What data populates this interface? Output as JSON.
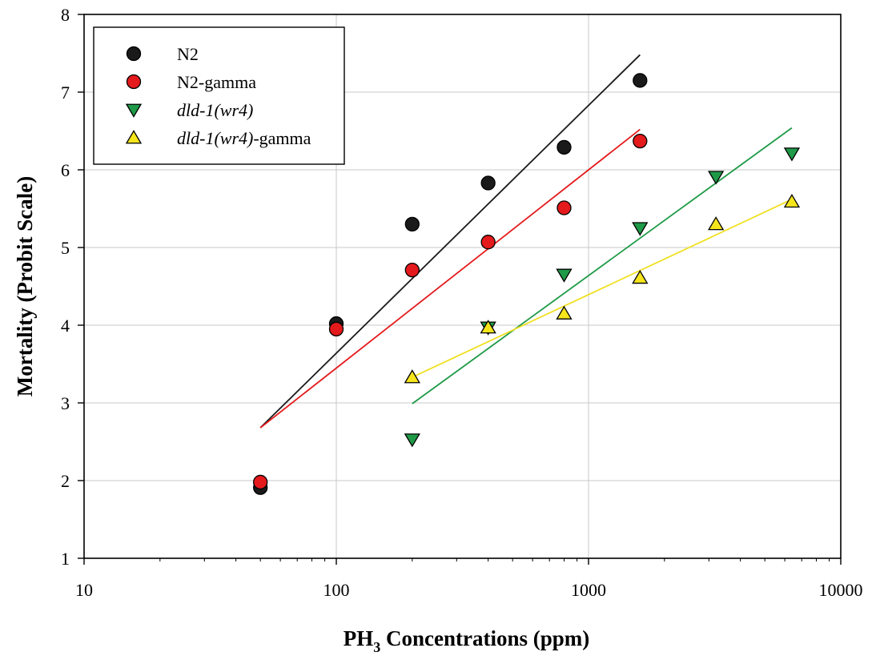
{
  "chart_data": {
    "type": "scatter",
    "x_scale": "log",
    "xlim": [
      10,
      10000
    ],
    "ylim": [
      1,
      8
    ],
    "grid": true,
    "legend_position": "top-left",
    "xlabel": {
      "main": "PH",
      "sub": "3",
      "rest": " Concentrations (ppm)"
    },
    "ylabel": "Mortality (Probit Scale)",
    "x_ticks": [
      10,
      100,
      1000,
      10000
    ],
    "x_tick_labels": [
      "10",
      "100",
      "1000",
      "10000"
    ],
    "y_ticks": [
      1,
      2,
      3,
      4,
      5,
      6,
      7,
      8
    ],
    "y_tick_labels": [
      "1",
      "2",
      "3",
      "4",
      "5",
      "6",
      "7",
      "8"
    ],
    "series": [
      {
        "name": "N2",
        "legend_parts": [
          {
            "text": "N2",
            "italic": false
          }
        ],
        "marker": "circle",
        "color": "#1a1a1a",
        "points": [
          [
            50,
            1.91
          ],
          [
            100,
            4.02
          ],
          [
            200,
            5.3
          ],
          [
            400,
            5.83
          ],
          [
            800,
            6.29
          ],
          [
            1600,
            7.15
          ]
        ],
        "fit": {
          "x": [
            50,
            1600
          ],
          "y": [
            2.68,
            7.48
          ]
        },
        "line_color": "#1a1a1a"
      },
      {
        "name": "N2-gamma",
        "legend_parts": [
          {
            "text": "N2-gamma",
            "italic": false
          }
        ],
        "marker": "circle",
        "color": "#e41a1c",
        "points": [
          [
            50,
            1.98
          ],
          [
            100,
            3.95
          ],
          [
            200,
            4.71
          ],
          [
            400,
            5.07
          ],
          [
            800,
            5.51
          ],
          [
            1600,
            6.37
          ]
        ],
        "fit": {
          "x": [
            50,
            1600
          ],
          "y": [
            2.68,
            6.52
          ]
        },
        "line_color": "#e41a1c"
      },
      {
        "name": "dld-1(wr4)",
        "legend_parts": [
          {
            "text": "dld-1(wr4)",
            "italic": true
          }
        ],
        "marker": "triangle-down",
        "color": "#1f9a48",
        "points": [
          [
            200,
            2.53
          ],
          [
            400,
            3.97
          ],
          [
            800,
            4.65
          ],
          [
            1600,
            5.25
          ],
          [
            3200,
            5.91
          ],
          [
            6400,
            6.21
          ]
        ],
        "fit": {
          "x": [
            200,
            6400
          ],
          "y": [
            2.99,
            6.54
          ]
        },
        "line_color": "#1f9a48"
      },
      {
        "name": "dld-1(wr4)-gamma",
        "legend_parts": [
          {
            "text": "dld-1(wr4)",
            "italic": true
          },
          {
            "text": "-gamma",
            "italic": false
          }
        ],
        "marker": "triangle-up",
        "color": "#f5e51b",
        "points": [
          [
            200,
            3.33
          ],
          [
            400,
            3.97
          ],
          [
            800,
            4.15
          ],
          [
            1600,
            4.61
          ],
          [
            3200,
            5.3
          ],
          [
            6400,
            5.59
          ]
        ],
        "fit": {
          "x": [
            200,
            6400
          ],
          "y": [
            3.33,
            5.62
          ]
        },
        "line_color": "#f0e020"
      }
    ]
  }
}
